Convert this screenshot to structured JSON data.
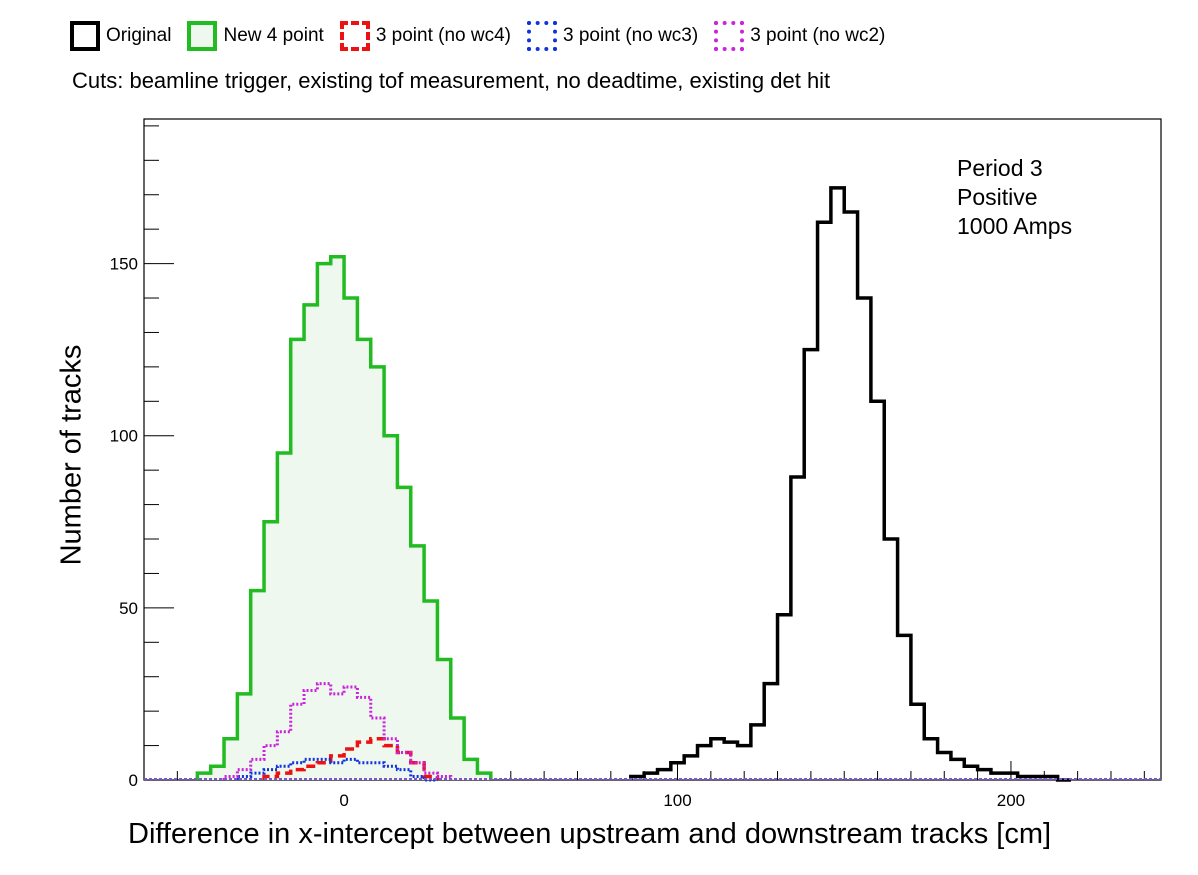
{
  "legend": {
    "items": [
      {
        "label": "Original",
        "color": "#000000",
        "style": "solid",
        "filled": false
      },
      {
        "label": "New 4 point",
        "color": "#22bb22",
        "style": "solid",
        "filled": true,
        "fill_color": "#eef8ee"
      },
      {
        "label": "3 point (no wc4)",
        "color": "#ee1111",
        "style": "dashed",
        "filled": false
      },
      {
        "label": "3 point (no wc3)",
        "color": "#1133dd",
        "style": "dotted",
        "filled": false
      },
      {
        "label": "3 point (no wc2)",
        "color": "#cc22dd",
        "style": "dotted",
        "filled": false
      }
    ]
  },
  "cuts_text": "Cuts: beamline trigger, existing tof measurement, no deadtime, existing det hit",
  "annotation": {
    "line1": "Period 3",
    "line2": "Positive",
    "line3": "1000 Amps"
  },
  "chart_data": {
    "type": "histogram",
    "title": "",
    "xlabel": "Difference in x-intercept between upstream and downstream tracks [cm]",
    "ylabel": "Number of tracks",
    "xlim": [
      -60,
      245
    ],
    "ylim": [
      0,
      192
    ],
    "xticks": [
      0,
      100,
      200
    ],
    "yticks": [
      0,
      50,
      100,
      150
    ],
    "grid": false,
    "series": [
      {
        "name": "Original",
        "color": "#000000",
        "style": "solid",
        "x": [
          88,
          92,
          96,
          100,
          104,
          108,
          112,
          116,
          120,
          124,
          128,
          132,
          136,
          140,
          144,
          148,
          152,
          156,
          160,
          164,
          168,
          172,
          176,
          180,
          184,
          188,
          192,
          196,
          200,
          204,
          208,
          212,
          216
        ],
        "values": [
          1,
          2,
          3,
          5,
          7,
          10,
          12,
          11,
          10,
          16,
          28,
          48,
          88,
          125,
          162,
          172,
          165,
          140,
          110,
          70,
          42,
          22,
          12,
          8,
          6,
          4,
          3,
          2,
          2,
          1,
          1,
          1,
          0
        ]
      },
      {
        "name": "New 4 point",
        "color": "#22bb22",
        "fill": "#eef8ee",
        "style": "solid",
        "x": [
          -42,
          -38,
          -34,
          -30,
          -26,
          -22,
          -18,
          -14,
          -10,
          -6,
          -2,
          2,
          6,
          10,
          14,
          18,
          22,
          26,
          30,
          34,
          38,
          42
        ],
        "values": [
          2,
          4,
          12,
          25,
          55,
          75,
          95,
          128,
          138,
          150,
          152,
          140,
          128,
          120,
          100,
          85,
          68,
          52,
          35,
          18,
          6,
          2
        ]
      },
      {
        "name": "3 point (no wc4)",
        "color": "#ee1111",
        "style": "dashed",
        "x": [
          -22,
          -18,
          -14,
          -10,
          -6,
          -2,
          2,
          6,
          10,
          14,
          18,
          22,
          26
        ],
        "values": [
          1,
          2,
          3,
          4,
          5,
          7,
          9,
          11,
          12,
          10,
          8,
          5,
          1
        ]
      },
      {
        "name": "3 point (no wc3)",
        "color": "#1133dd",
        "style": "dotted",
        "x": [
          -30,
          -26,
          -22,
          -18,
          -14,
          -10,
          -6,
          -2,
          2,
          6,
          10,
          14,
          18,
          22,
          26
        ],
        "values": [
          1,
          2,
          3,
          4,
          5,
          6,
          6,
          5,
          6,
          5,
          5,
          4,
          3,
          1,
          0
        ]
      },
      {
        "name": "3 point (no wc2)",
        "color": "#cc22dd",
        "style": "dotted",
        "x": [
          -34,
          -30,
          -26,
          -22,
          -18,
          -14,
          -10,
          -6,
          -2,
          2,
          6,
          10,
          14,
          18,
          22,
          26,
          30
        ],
        "values": [
          1,
          3,
          6,
          10,
          14,
          22,
          26,
          28,
          25,
          27,
          24,
          18,
          12,
          8,
          5,
          2,
          1
        ]
      }
    ]
  }
}
